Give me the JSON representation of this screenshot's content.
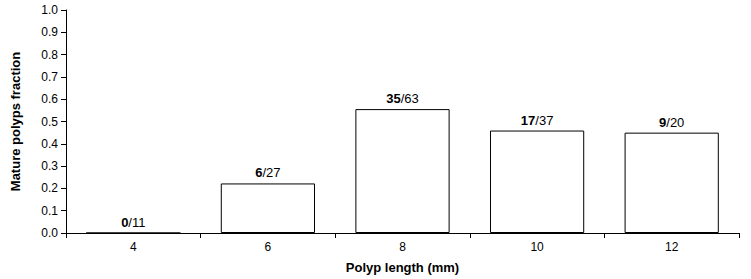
{
  "chart_data": {
    "type": "bar",
    "x_label": "Polyp length (mm)",
    "y_label": "Mature polyps fraction",
    "categories": [
      "4",
      "6",
      "8",
      "10",
      "12"
    ],
    "values": [
      0,
      0.2222,
      0.5556,
      0.4595,
      0.45
    ],
    "value_labels": [
      "0/11",
      "6/27",
      "35/63",
      "17/37",
      "9/20"
    ],
    "data_labels": true,
    "color": "#ffffff",
    "ylim": [
      0,
      1
    ],
    "yticks": [
      {
        "value": 0,
        "label": "0.0"
      },
      {
        "value": 0.1,
        "label": "0.1"
      },
      {
        "value": 0.2,
        "label": "0.2"
      },
      {
        "value": 0.3,
        "label": "0.3"
      },
      {
        "value": 0.4,
        "label": "0.4"
      },
      {
        "value": 0.5,
        "label": "0.5"
      },
      {
        "value": 0.6,
        "label": "0.6"
      },
      {
        "value": 0.7,
        "label": "0.7"
      },
      {
        "value": 0.8,
        "label": "0.8"
      },
      {
        "value": 0.9,
        "label": "0.9"
      },
      {
        "value": 1,
        "label": "1.0"
      }
    ],
    "grid": false
  }
}
